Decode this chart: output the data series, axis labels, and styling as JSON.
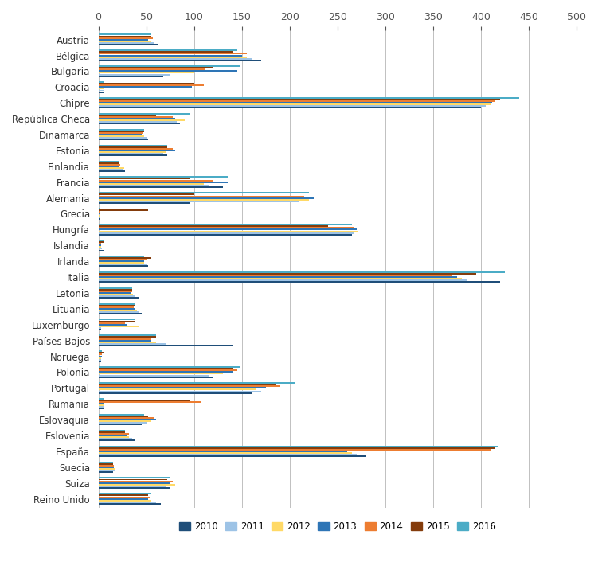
{
  "countries": [
    "Austria",
    "Bélgica",
    "Bulgaria",
    "Croacia",
    "Chipre",
    "República Checa",
    "Dinamarca",
    "Estonia",
    "Finlandia",
    "Francia",
    "Alemania",
    "Grecia",
    "Hungría",
    "Islandia",
    "Irlanda",
    "Italia",
    "Letonia",
    "Lituania",
    "Luxemburgo",
    "Países Bajos",
    "Noruega",
    "Polonia",
    "Portugal",
    "Rumania",
    "Eslovaquia",
    "Eslovenia",
    "España",
    "Suecia",
    "Suiza",
    "Reino Unido"
  ],
  "years": [
    "2010",
    "2011",
    "2012",
    "2013",
    "2014",
    "2015",
    "2016"
  ],
  "colors": {
    "2010": "#1f4e79",
    "2011": "#9dc3e6",
    "2012": "#ffd966",
    "2013": "#2e75b6",
    "2014": "#ed7d31",
    "2015": "#843c0c",
    "2016": "#4bacc6"
  },
  "data": {
    "2010": [
      62,
      170,
      68,
      5,
      400,
      85,
      52,
      72,
      28,
      130,
      95,
      2,
      265,
      5,
      52,
      420,
      42,
      45,
      3,
      140,
      3,
      120,
      160,
      5,
      45,
      38,
      280,
      15,
      75,
      65
    ],
    "2011": [
      58,
      160,
      75,
      5,
      405,
      82,
      50,
      68,
      25,
      115,
      210,
      2,
      268,
      4,
      50,
      385,
      38,
      42,
      3,
      70,
      3,
      115,
      170,
      5,
      50,
      35,
      270,
      18,
      70,
      60
    ],
    "2012": [
      55,
      155,
      100,
      5,
      410,
      90,
      48,
      70,
      27,
      110,
      220,
      2,
      272,
      3,
      48,
      380,
      36,
      40,
      42,
      60,
      3,
      130,
      165,
      5,
      55,
      32,
      265,
      17,
      80,
      55
    ],
    "2013": [
      52,
      150,
      145,
      98,
      412,
      80,
      45,
      80,
      22,
      135,
      225,
      2,
      270,
      3,
      48,
      375,
      34,
      38,
      30,
      55,
      4,
      140,
      175,
      5,
      60,
      30,
      260,
      16,
      75,
      52
    ],
    "2014": [
      57,
      155,
      112,
      110,
      415,
      78,
      46,
      78,
      23,
      120,
      215,
      2,
      268,
      3,
      50,
      370,
      35,
      37,
      28,
      55,
      4,
      145,
      190,
      108,
      58,
      32,
      410,
      16,
      78,
      54
    ],
    "2015": [
      55,
      140,
      120,
      100,
      420,
      60,
      48,
      72,
      22,
      95,
      100,
      52,
      240,
      5,
      55,
      395,
      35,
      38,
      38,
      60,
      5,
      140,
      185,
      95,
      52,
      28,
      415,
      15,
      72,
      52
    ],
    "2016": [
      55,
      145,
      148,
      5,
      440,
      95,
      48,
      72,
      22,
      135,
      220,
      2,
      265,
      5,
      48,
      425,
      35,
      38,
      38,
      60,
      4,
      148,
      205,
      5,
      48,
      28,
      418,
      15,
      75,
      55
    ]
  },
  "xlim": [
    0,
    500
  ],
  "xticks": [
    0,
    50,
    100,
    150,
    200,
    250,
    300,
    350,
    400,
    450,
    500
  ]
}
